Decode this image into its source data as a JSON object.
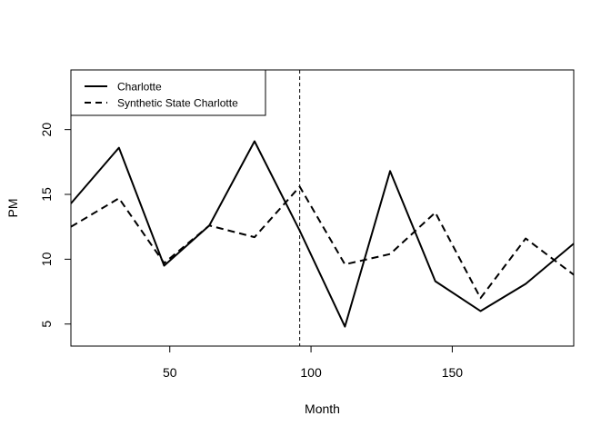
{
  "chart_data": {
    "type": "line",
    "title": "",
    "xlabel": "Month",
    "ylabel": "PM",
    "xlim": [
      15,
      193
    ],
    "ylim": [
      3.3,
      24.6
    ],
    "x_ticks": [
      50,
      100,
      150
    ],
    "y_ticks": [
      5,
      10,
      15,
      20
    ],
    "grid": false,
    "legend_position": "top-left",
    "reference_line": {
      "x": 96,
      "style": "dashed"
    },
    "series": [
      {
        "name": "Charlotte",
        "style": "solid",
        "color": "#000000",
        "x": [
          15,
          32,
          48,
          64,
          80,
          96,
          112,
          128,
          144,
          160,
          176,
          193
        ],
        "y": [
          14.3,
          18.6,
          9.5,
          12.6,
          19.1,
          12.2,
          4.8,
          16.8,
          8.3,
          6.0,
          8.1,
          11.2
        ]
      },
      {
        "name": "Synthetic State Charlotte",
        "style": "dashed",
        "color": "#000000",
        "x": [
          15,
          32,
          48,
          64,
          80,
          96,
          112,
          128,
          144,
          160,
          176,
          193
        ],
        "y": [
          12.5,
          14.7,
          9.7,
          12.6,
          11.7,
          15.6,
          9.6,
          10.4,
          13.6,
          7.0,
          11.6,
          8.8
        ]
      }
    ]
  }
}
